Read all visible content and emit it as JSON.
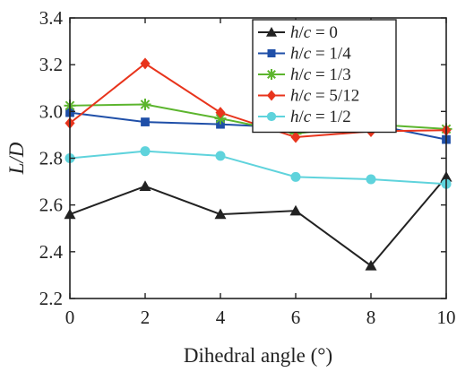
{
  "chart_data": {
    "type": "line",
    "xlabel": "Dihedral angle (°)",
    "ylabel": "L/D",
    "xlim": [
      0,
      10
    ],
    "ylim": [
      2.2,
      3.4
    ],
    "xticks": [
      "0",
      "2",
      "4",
      "6",
      "8",
      "10"
    ],
    "yticks": [
      "2.2",
      "2.4",
      "2.6",
      "2.8",
      "3.0",
      "3.2",
      "3.4"
    ],
    "x": [
      0,
      2,
      4,
      6,
      8,
      10
    ],
    "legend_position": "top-right",
    "grid": false,
    "series": [
      {
        "name": "h/c = 0",
        "color": "#222222",
        "marker": "triangle",
        "values": [
          2.56,
          2.68,
          2.56,
          2.575,
          2.34,
          2.72
        ]
      },
      {
        "name": "h/c = 1/4",
        "color": "#1f4fa8",
        "marker": "square",
        "values": [
          2.995,
          2.955,
          2.945,
          2.93,
          2.945,
          2.88
        ]
      },
      {
        "name": "h/c = 1/3",
        "color": "#5cb52e",
        "marker": "star",
        "values": [
          3.025,
          3.03,
          2.97,
          2.905,
          2.945,
          2.925
        ]
      },
      {
        "name": "h/c = 5/12",
        "color": "#e8341c",
        "marker": "diamond",
        "values": [
          2.95,
          3.205,
          2.995,
          2.89,
          2.915,
          2.92
        ]
      },
      {
        "name": "h/c = 1/2",
        "color": "#5fd3dc",
        "marker": "circle",
        "values": [
          2.8,
          2.83,
          2.81,
          2.72,
          2.71,
          2.69
        ]
      }
    ]
  }
}
